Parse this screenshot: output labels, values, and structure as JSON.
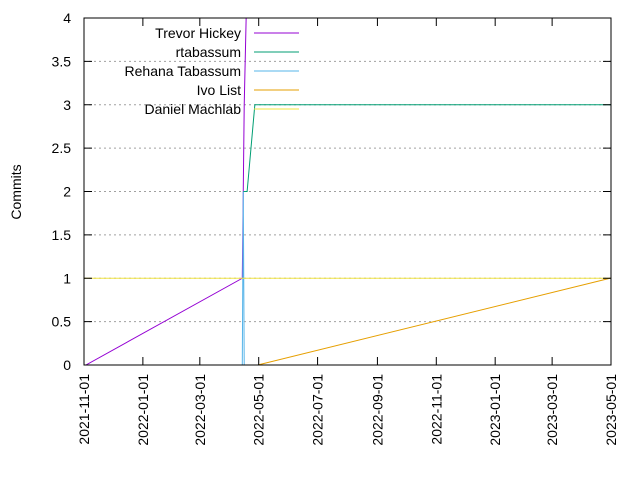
{
  "chart_data": {
    "type": "line",
    "title": "",
    "ylabel": "Commits",
    "xlabel": "",
    "xlim": [
      "2021-11-01",
      "2023-05-01"
    ],
    "ylim": [
      0,
      4
    ],
    "grid": true,
    "legend_position": "top-left",
    "x_ticks": [
      "2021-11-01",
      "2022-01-01",
      "2022-03-01",
      "2022-05-01",
      "2022-07-01",
      "2022-09-01",
      "2022-11-01",
      "2023-01-01",
      "2023-03-01",
      "2023-05-01"
    ],
    "y_ticks": [
      "0",
      "0.5",
      "1",
      "1.5",
      "2",
      "2.5",
      "3",
      "3.5",
      "4"
    ],
    "series": [
      {
        "name": "Trevor Hickey",
        "color": "#9400d3",
        "points": [
          [
            "2021-11-03",
            0
          ],
          [
            "2022-04-14",
            1
          ],
          [
            "2022-04-15",
            2
          ],
          [
            "2022-04-16",
            3
          ],
          [
            "2022-04-18",
            4
          ],
          [
            "2022-04-19",
            4.2
          ]
        ]
      },
      {
        "name": "rtabassum",
        "color": "#009e73",
        "points": [
          [
            "2022-04-15",
            2
          ],
          [
            "2022-04-19",
            2
          ],
          [
            "2022-04-27",
            3
          ],
          [
            "2023-05-01",
            3
          ]
        ]
      },
      {
        "name": "Rehana Tabassum",
        "color": "#56b4e9",
        "points": [
          [
            "2022-04-14",
            0
          ],
          [
            "2022-04-15",
            2
          ],
          [
            "2022-04-16",
            0
          ]
        ]
      },
      {
        "name": "Ivo List",
        "color": "#e69f00",
        "points": [
          [
            "2022-04-30",
            0
          ],
          [
            "2023-04-30",
            1
          ]
        ]
      },
      {
        "name": "Daniel Machlab",
        "color": "#f0e442",
        "points": [
          [
            "2021-11-01",
            1
          ],
          [
            "2023-05-01",
            1
          ]
        ]
      }
    ]
  }
}
